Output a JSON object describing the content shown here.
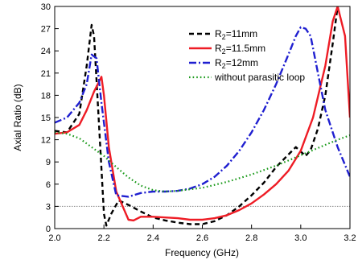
{
  "chart_data": {
    "type": "line",
    "title": "",
    "xlabel": "Frequency (GHz)",
    "ylabel": "Axial Ratio (dB)",
    "xlim": [
      2.0,
      3.2
    ],
    "ylim": [
      0,
      30
    ],
    "xticks": [
      "2.0",
      "2.2",
      "2.4",
      "2.6",
      "2.8",
      "3.0",
      "3.2"
    ],
    "yticks": [
      "0",
      "3",
      "6",
      "9",
      "12",
      "15",
      "18",
      "21",
      "24",
      "27",
      "30"
    ],
    "grid": false,
    "legend_position": "top-right",
    "reference_line": {
      "y": 3,
      "style": "dotted",
      "color": "#888888"
    },
    "series": [
      {
        "name": "R2=11mm",
        "legend_main": "R",
        "legend_sub": "2",
        "legend_rest": "=11mm",
        "color": "#000000",
        "dash": "dash",
        "x": [
          2.0,
          2.05,
          2.1,
          2.13,
          2.15,
          2.16,
          2.18,
          2.2,
          2.21,
          2.23,
          2.26,
          2.3,
          2.35,
          2.4,
          2.45,
          2.5,
          2.55,
          2.6,
          2.65,
          2.7,
          2.75,
          2.8,
          2.85,
          2.9,
          2.95,
          2.98,
          3.0,
          3.02,
          3.04,
          3.07,
          3.1,
          3.13,
          3.15
        ],
        "y": [
          13.2,
          13.0,
          15.5,
          22.0,
          27.5,
          26.0,
          14.0,
          2.0,
          0.4,
          2.0,
          3.8,
          3.2,
          2.3,
          1.5,
          1.1,
          0.8,
          0.6,
          0.6,
          1.0,
          1.8,
          3.0,
          4.5,
          6.2,
          8.3,
          10.0,
          11.0,
          10.4,
          9.8,
          10.6,
          13.5,
          18.0,
          25.0,
          30.0
        ]
      },
      {
        "name": "R2=11.5mm",
        "legend_main": "R",
        "legend_sub": "2",
        "legend_rest": "=11.5mm",
        "color": "#ee1c25",
        "dash": "solid",
        "x": [
          2.0,
          2.05,
          2.1,
          2.13,
          2.16,
          2.19,
          2.2,
          2.22,
          2.25,
          2.3,
          2.32,
          2.35,
          2.4,
          2.45,
          2.5,
          2.55,
          2.6,
          2.65,
          2.7,
          2.75,
          2.8,
          2.85,
          2.9,
          2.95,
          3.0,
          3.05,
          3.1,
          3.13,
          3.15,
          3.18,
          3.2
        ],
        "y": [
          12.8,
          13.0,
          14.0,
          16.0,
          18.5,
          20.5,
          18.0,
          11.0,
          5.0,
          1.2,
          1.1,
          1.6,
          1.6,
          1.5,
          1.4,
          1.2,
          1.2,
          1.4,
          1.8,
          2.5,
          3.4,
          4.6,
          6.0,
          7.8,
          10.5,
          15.0,
          22.0,
          28.0,
          30.0,
          26.0,
          15.0
        ]
      },
      {
        "name": "R2=12mm",
        "legend_main": "R",
        "legend_sub": "2",
        "legend_rest": "=12mm",
        "color": "#1f1fd0",
        "dash": "dashdot",
        "x": [
          2.0,
          2.05,
          2.1,
          2.13,
          2.15,
          2.17,
          2.19,
          2.22,
          2.25,
          2.3,
          2.35,
          2.4,
          2.45,
          2.5,
          2.55,
          2.6,
          2.65,
          2.7,
          2.75,
          2.8,
          2.85,
          2.9,
          2.95,
          2.98,
          3.0,
          3.02,
          3.04,
          3.07,
          3.1,
          3.15,
          3.2
        ],
        "y": [
          14.3,
          15.0,
          17.0,
          19.5,
          23.5,
          23.0,
          17.0,
          9.0,
          4.5,
          4.3,
          4.8,
          5.0,
          5.0,
          5.1,
          5.4,
          6.0,
          7.0,
          8.5,
          10.5,
          13.0,
          16.0,
          19.5,
          23.5,
          26.0,
          27.2,
          27.0,
          26.0,
          21.0,
          16.0,
          11.0,
          7.0
        ]
      },
      {
        "name": "without parasitic loop",
        "legend_main": "without parasitic loop",
        "legend_sub": "",
        "legend_rest": "",
        "color": "#1a9a1a",
        "dash": "dot",
        "x": [
          2.0,
          2.05,
          2.1,
          2.15,
          2.2,
          2.25,
          2.3,
          2.35,
          2.4,
          2.45,
          2.5,
          2.55,
          2.6,
          2.65,
          2.7,
          2.75,
          2.8,
          2.85,
          2.9,
          2.95,
          3.0,
          3.05,
          3.1,
          3.15,
          3.2
        ],
        "y": [
          13.0,
          12.8,
          12.2,
          11.0,
          9.8,
          8.3,
          6.9,
          5.8,
          5.2,
          5.0,
          5.1,
          5.3,
          5.5,
          5.9,
          6.3,
          6.8,
          7.3,
          7.9,
          8.5,
          9.2,
          9.9,
          10.6,
          11.3,
          12.0,
          12.6
        ]
      }
    ]
  }
}
